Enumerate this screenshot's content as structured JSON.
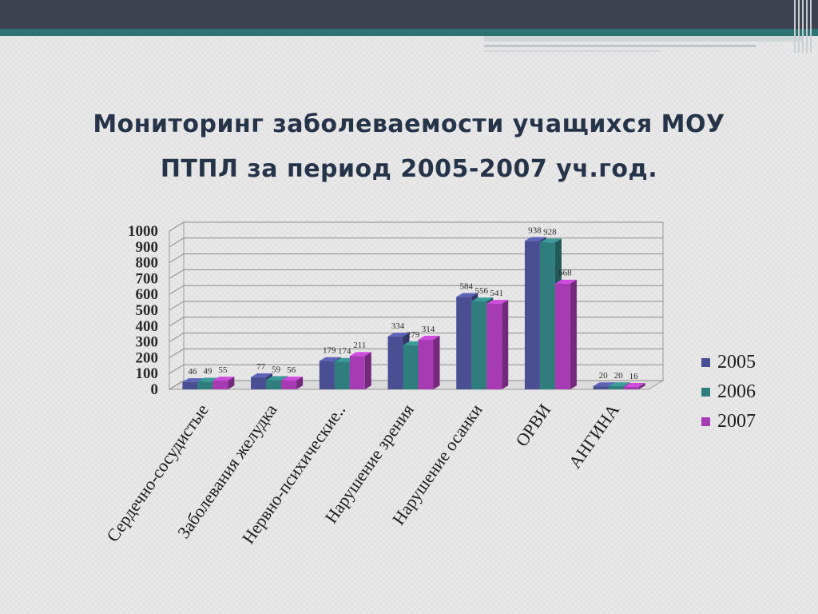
{
  "title_line1": "Мониторинг заболеваемости учащихся МОУ",
  "title_line2": "ПТПЛ за период 2005-2007 уч.год.",
  "chart_data": {
    "type": "bar",
    "title": "",
    "categories": [
      "Сердечно-сосудистые",
      "Заболевания желудка",
      "Нервно-психические..",
      "Нарушение зрения",
      "Нарушение осанки",
      "ОРВИ",
      "АНГИНА"
    ],
    "series": [
      {
        "name": "2005",
        "values": [
          46,
          77,
          179,
          334,
          584,
          938,
          20
        ],
        "color": "#4a4f94"
      },
      {
        "name": "2006",
        "values": [
          49,
          59,
          174,
          279,
          556,
          928,
          20
        ],
        "color": "#2f7d7d"
      },
      {
        "name": "2007",
        "values": [
          55,
          56,
          211,
          314,
          541,
          668,
          16
        ],
        "color": "#a63bb3"
      }
    ],
    "yticks": [
      "0",
      "100",
      "200",
      "300",
      "400",
      "500",
      "600",
      "700",
      "800",
      "900",
      "1000"
    ],
    "ylim": [
      0,
      1000
    ],
    "grid": true,
    "legend_position": "right"
  }
}
